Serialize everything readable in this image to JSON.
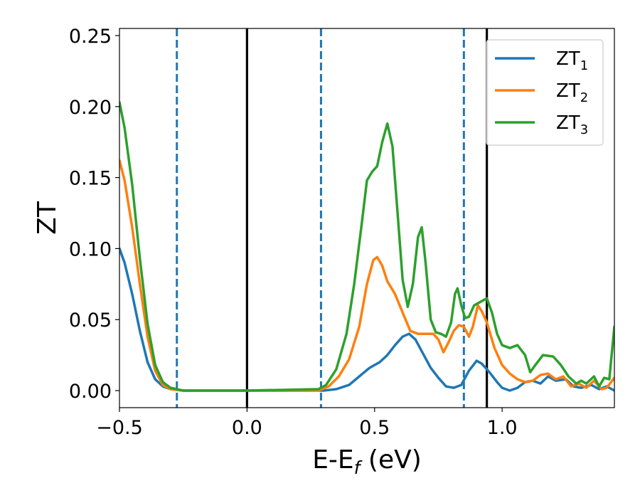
{
  "chart_data": {
    "type": "line",
    "xlabel": "E-E",
    "xlabel_sub": "f",
    "xlabel_unit": " (eV)",
    "ylabel": "ZT",
    "xlim": [
      -0.5,
      1.44
    ],
    "ylim": [
      -0.012,
      0.255
    ],
    "xticks": [
      -0.5,
      0.0,
      0.5,
      1.0
    ],
    "xtick_labels": [
      "−0.5",
      "0.0",
      "0.5",
      "1.0"
    ],
    "yticks": [
      0.0,
      0.05,
      0.1,
      0.15,
      0.2,
      0.25
    ],
    "ytick_labels": [
      "0.00",
      "0.05",
      "0.10",
      "0.15",
      "0.20",
      "0.25"
    ],
    "legend_position": "top-right",
    "vlines": [
      {
        "x": 0.0,
        "style": "solid",
        "color": "#000000"
      },
      {
        "x": 0.94,
        "style": "solid",
        "color": "#000000"
      },
      {
        "x": -0.275,
        "style": "dashed",
        "color": "#1f77b4"
      },
      {
        "x": 0.29,
        "style": "dashed",
        "color": "#1f77b4"
      },
      {
        "x": 0.85,
        "style": "dashed",
        "color": "#1f77b4"
      }
    ],
    "series": [
      {
        "name": "ZT",
        "sub": "1",
        "color": "#1f77b4",
        "points": [
          [
            -0.5,
            0.1
          ],
          [
            -0.48,
            0.09
          ],
          [
            -0.45,
            0.068
          ],
          [
            -0.42,
            0.042
          ],
          [
            -0.39,
            0.02
          ],
          [
            -0.36,
            0.008
          ],
          [
            -0.33,
            0.003
          ],
          [
            -0.3,
            0.001
          ],
          [
            -0.25,
            0.0
          ],
          [
            0.0,
            0.0
          ],
          [
            0.3,
            0.0
          ],
          [
            0.35,
            0.001
          ],
          [
            0.4,
            0.004
          ],
          [
            0.44,
            0.01
          ],
          [
            0.48,
            0.016
          ],
          [
            0.52,
            0.02
          ],
          [
            0.55,
            0.025
          ],
          [
            0.58,
            0.032
          ],
          [
            0.61,
            0.038
          ],
          [
            0.635,
            0.04
          ],
          [
            0.66,
            0.036
          ],
          [
            0.69,
            0.026
          ],
          [
            0.72,
            0.016
          ],
          [
            0.75,
            0.009
          ],
          [
            0.78,
            0.003
          ],
          [
            0.81,
            0.002
          ],
          [
            0.84,
            0.004
          ],
          [
            0.87,
            0.014
          ],
          [
            0.9,
            0.021
          ],
          [
            0.92,
            0.019
          ],
          [
            0.95,
            0.013
          ],
          [
            0.98,
            0.006
          ],
          [
            1.0,
            0.002
          ],
          [
            1.03,
            0.0
          ],
          [
            1.06,
            0.002
          ],
          [
            1.09,
            0.006
          ],
          [
            1.12,
            0.007
          ],
          [
            1.15,
            0.005
          ],
          [
            1.18,
            0.01
          ],
          [
            1.21,
            0.007
          ],
          [
            1.25,
            0.008
          ],
          [
            1.28,
            0.003
          ],
          [
            1.31,
            0.002
          ],
          [
            1.35,
            0.004
          ],
          [
            1.38,
            0.001
          ],
          [
            1.41,
            0.003
          ],
          [
            1.44,
            0.0
          ]
        ]
      },
      {
        "name": "ZT",
        "sub": "2",
        "color": "#ff7f0e",
        "points": [
          [
            -0.5,
            0.162
          ],
          [
            -0.48,
            0.148
          ],
          [
            -0.45,
            0.115
          ],
          [
            -0.42,
            0.075
          ],
          [
            -0.39,
            0.038
          ],
          [
            -0.36,
            0.014
          ],
          [
            -0.33,
            0.004
          ],
          [
            -0.3,
            0.001
          ],
          [
            -0.25,
            0.0
          ],
          [
            0.0,
            0.0
          ],
          [
            0.28,
            0.0
          ],
          [
            0.32,
            0.003
          ],
          [
            0.36,
            0.01
          ],
          [
            0.4,
            0.022
          ],
          [
            0.44,
            0.045
          ],
          [
            0.47,
            0.075
          ],
          [
            0.495,
            0.092
          ],
          [
            0.51,
            0.094
          ],
          [
            0.53,
            0.088
          ],
          [
            0.55,
            0.077
          ],
          [
            0.58,
            0.068
          ],
          [
            0.61,
            0.055
          ],
          [
            0.64,
            0.042
          ],
          [
            0.67,
            0.04
          ],
          [
            0.7,
            0.04
          ],
          [
            0.73,
            0.04
          ],
          [
            0.75,
            0.036
          ],
          [
            0.77,
            0.027
          ],
          [
            0.79,
            0.034
          ],
          [
            0.81,
            0.042
          ],
          [
            0.83,
            0.046
          ],
          [
            0.85,
            0.045
          ],
          [
            0.87,
            0.038
          ],
          [
            0.885,
            0.045
          ],
          [
            0.905,
            0.06
          ],
          [
            0.92,
            0.056
          ],
          [
            0.94,
            0.048
          ],
          [
            0.97,
            0.03
          ],
          [
            1.0,
            0.018
          ],
          [
            1.03,
            0.012
          ],
          [
            1.06,
            0.008
          ],
          [
            1.09,
            0.006
          ],
          [
            1.12,
            0.007
          ],
          [
            1.15,
            0.011
          ],
          [
            1.18,
            0.012
          ],
          [
            1.21,
            0.008
          ],
          [
            1.24,
            0.01
          ],
          [
            1.27,
            0.003
          ],
          [
            1.3,
            0.005
          ],
          [
            1.33,
            0.002
          ],
          [
            1.36,
            0.007
          ],
          [
            1.39,
            0.001
          ],
          [
            1.41,
            0.002
          ],
          [
            1.44,
            0.009
          ]
        ]
      },
      {
        "name": "ZT",
        "sub": "3",
        "color": "#2ca02c",
        "points": [
          [
            -0.5,
            0.203
          ],
          [
            -0.48,
            0.185
          ],
          [
            -0.45,
            0.145
          ],
          [
            -0.42,
            0.093
          ],
          [
            -0.39,
            0.047
          ],
          [
            -0.36,
            0.018
          ],
          [
            -0.33,
            0.006
          ],
          [
            -0.3,
            0.002
          ],
          [
            -0.25,
            0.0
          ],
          [
            0.0,
            0.0
          ],
          [
            0.28,
            0.001
          ],
          [
            0.31,
            0.004
          ],
          [
            0.35,
            0.015
          ],
          [
            0.39,
            0.04
          ],
          [
            0.42,
            0.075
          ],
          [
            0.45,
            0.118
          ],
          [
            0.47,
            0.148
          ],
          [
            0.49,
            0.154
          ],
          [
            0.51,
            0.158
          ],
          [
            0.53,
            0.175
          ],
          [
            0.55,
            0.188
          ],
          [
            0.57,
            0.172
          ],
          [
            0.59,
            0.125
          ],
          [
            0.61,
            0.078
          ],
          [
            0.63,
            0.059
          ],
          [
            0.65,
            0.075
          ],
          [
            0.67,
            0.108
          ],
          [
            0.685,
            0.115
          ],
          [
            0.7,
            0.09
          ],
          [
            0.72,
            0.05
          ],
          [
            0.74,
            0.041
          ],
          [
            0.76,
            0.04
          ],
          [
            0.78,
            0.038
          ],
          [
            0.8,
            0.048
          ],
          [
            0.815,
            0.068
          ],
          [
            0.825,
            0.072
          ],
          [
            0.84,
            0.06
          ],
          [
            0.855,
            0.051
          ],
          [
            0.87,
            0.052
          ],
          [
            0.89,
            0.06
          ],
          [
            0.92,
            0.063
          ],
          [
            0.94,
            0.065
          ],
          [
            0.96,
            0.055
          ],
          [
            0.98,
            0.04
          ],
          [
            1.0,
            0.032
          ],
          [
            1.03,
            0.03
          ],
          [
            1.06,
            0.032
          ],
          [
            1.09,
            0.025
          ],
          [
            1.11,
            0.013
          ],
          [
            1.13,
            0.018
          ],
          [
            1.16,
            0.025
          ],
          [
            1.2,
            0.024
          ],
          [
            1.23,
            0.018
          ],
          [
            1.26,
            0.01
          ],
          [
            1.29,
            0.005
          ],
          [
            1.31,
            0.007
          ],
          [
            1.33,
            0.005
          ],
          [
            1.36,
            0.01
          ],
          [
            1.38,
            0.003
          ],
          [
            1.4,
            0.009
          ],
          [
            1.42,
            0.008
          ],
          [
            1.44,
            0.045
          ]
        ]
      }
    ]
  }
}
